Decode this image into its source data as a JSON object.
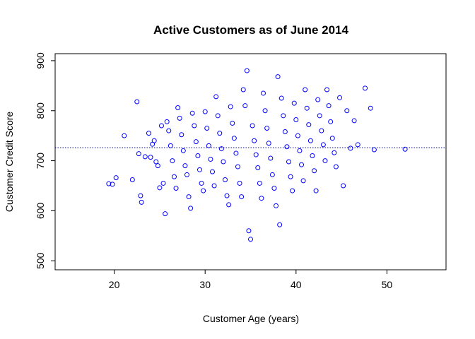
{
  "chart_data": {
    "type": "scatter",
    "title": "Active Customers as of June 2014",
    "xlabel": "Customer Age (years)",
    "ylabel": "Customer Credit Score",
    "xlim": [
      13.5,
      56.5
    ],
    "ylim": [
      482,
      914
    ],
    "xticks": [
      20,
      30,
      40,
      50
    ],
    "yticks": [
      500,
      600,
      700,
      800,
      900
    ],
    "grid": false,
    "legend": "none",
    "point_color": "#0000ff",
    "reference_line": {
      "y": 726,
      "color": "#000080",
      "style": "dotted"
    },
    "points": [
      [
        19.4,
        654
      ],
      [
        19.8,
        653
      ],
      [
        20.2,
        666
      ],
      [
        21.1,
        750
      ],
      [
        22.0,
        662
      ],
      [
        22.5,
        818
      ],
      [
        22.7,
        714
      ],
      [
        22.9,
        630
      ],
      [
        23.0,
        617
      ],
      [
        23.4,
        708
      ],
      [
        23.8,
        755
      ],
      [
        24.0,
        707
      ],
      [
        24.2,
        733
      ],
      [
        24.4,
        740
      ],
      [
        24.6,
        698
      ],
      [
        24.8,
        690
      ],
      [
        25.0,
        646
      ],
      [
        25.2,
        770
      ],
      [
        25.4,
        655
      ],
      [
        25.6,
        594
      ],
      [
        25.8,
        778
      ],
      [
        26.0,
        760
      ],
      [
        26.2,
        730
      ],
      [
        26.4,
        700
      ],
      [
        26.6,
        668
      ],
      [
        26.8,
        645
      ],
      [
        27.0,
        806
      ],
      [
        27.2,
        785
      ],
      [
        27.4,
        752
      ],
      [
        27.6,
        720
      ],
      [
        27.8,
        690
      ],
      [
        28.0,
        672
      ],
      [
        28.2,
        628
      ],
      [
        28.4,
        605
      ],
      [
        28.6,
        795
      ],
      [
        28.8,
        770
      ],
      [
        29.0,
        738
      ],
      [
        29.2,
        710
      ],
      [
        29.4,
        682
      ],
      [
        29.6,
        655
      ],
      [
        29.8,
        640
      ],
      [
        30.0,
        798
      ],
      [
        30.2,
        765
      ],
      [
        30.4,
        730
      ],
      [
        30.6,
        703
      ],
      [
        30.8,
        678
      ],
      [
        31.0,
        650
      ],
      [
        31.2,
        828
      ],
      [
        31.4,
        790
      ],
      [
        31.6,
        755
      ],
      [
        31.8,
        724
      ],
      [
        32.0,
        698
      ],
      [
        32.2,
        662
      ],
      [
        32.4,
        630
      ],
      [
        32.6,
        612
      ],
      [
        32.8,
        808
      ],
      [
        33.0,
        775
      ],
      [
        33.2,
        745
      ],
      [
        33.4,
        715
      ],
      [
        33.6,
        688
      ],
      [
        33.8,
        655
      ],
      [
        34.0,
        628
      ],
      [
        34.2,
        842
      ],
      [
        34.4,
        810
      ],
      [
        34.6,
        880
      ],
      [
        34.8,
        560
      ],
      [
        35.0,
        543
      ],
      [
        35.2,
        770
      ],
      [
        35.4,
        740
      ],
      [
        35.6,
        712
      ],
      [
        35.8,
        686
      ],
      [
        36.0,
        655
      ],
      [
        36.2,
        625
      ],
      [
        36.4,
        835
      ],
      [
        36.6,
        800
      ],
      [
        36.8,
        765
      ],
      [
        37.0,
        735
      ],
      [
        37.2,
        705
      ],
      [
        37.4,
        672
      ],
      [
        37.6,
        645
      ],
      [
        37.8,
        610
      ],
      [
        38.0,
        868
      ],
      [
        38.2,
        572
      ],
      [
        38.4,
        825
      ],
      [
        38.6,
        790
      ],
      [
        38.8,
        758
      ],
      [
        39.0,
        728
      ],
      [
        39.2,
        698
      ],
      [
        39.4,
        668
      ],
      [
        39.6,
        640
      ],
      [
        39.8,
        815
      ],
      [
        40.0,
        782
      ],
      [
        40.2,
        750
      ],
      [
        40.4,
        720
      ],
      [
        40.6,
        692
      ],
      [
        40.8,
        660
      ],
      [
        41.0,
        842
      ],
      [
        41.2,
        805
      ],
      [
        41.4,
        772
      ],
      [
        41.6,
        740
      ],
      [
        41.8,
        710
      ],
      [
        42.0,
        680
      ],
      [
        42.2,
        640
      ],
      [
        42.4,
        822
      ],
      [
        42.6,
        790
      ],
      [
        42.8,
        760
      ],
      [
        43.0,
        732
      ],
      [
        43.2,
        700
      ],
      [
        43.4,
        842
      ],
      [
        43.6,
        810
      ],
      [
        43.8,
        778
      ],
      [
        44.0,
        745
      ],
      [
        44.2,
        716
      ],
      [
        44.4,
        688
      ],
      [
        44.8,
        826
      ],
      [
        45.2,
        650
      ],
      [
        45.6,
        800
      ],
      [
        46.0,
        725
      ],
      [
        46.4,
        780
      ],
      [
        46.8,
        732
      ],
      [
        47.6,
        845
      ],
      [
        48.2,
        805
      ],
      [
        48.6,
        722
      ],
      [
        52.0,
        723
      ]
    ]
  }
}
